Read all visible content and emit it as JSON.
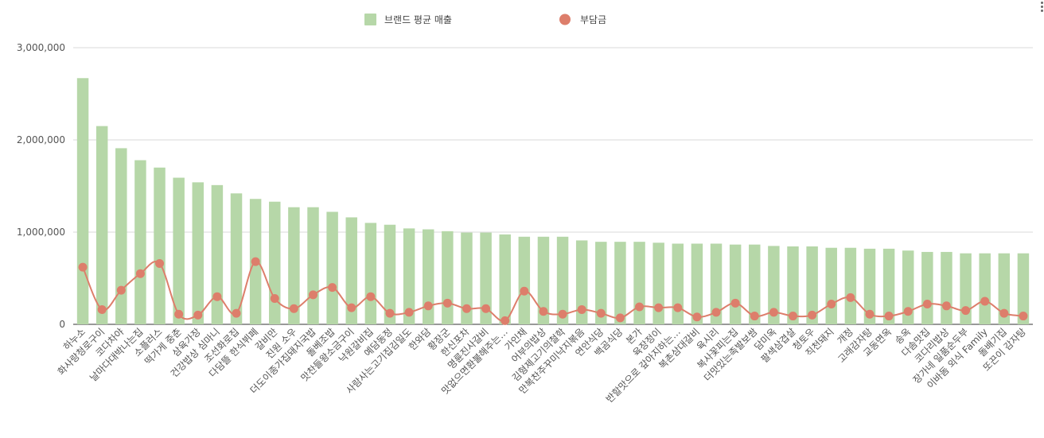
{
  "chart_data": {
    "type": "bar",
    "title": "",
    "xlabel": "",
    "ylabel": "",
    "ylim": [
      0,
      3000000
    ],
    "yticks": [
      "0",
      "1,000,000",
      "2,000,000",
      "3,000,000"
    ],
    "ytick_values": [
      0,
      1000000,
      2000000,
      3000000
    ],
    "grid": true,
    "legend_position": "top-center",
    "categories": [
      "하누소",
      "화사랑청로구이",
      "코다차야",
      "날마다대박나는집",
      "소플러스",
      "떡가게 중춘",
      "삼육가장",
      "건강밥상 심마니",
      "조선화로집",
      "다담뜰 한식뷔페",
      "갈비만",
      "진원 소우",
      "더도이종가집돼지국밥",
      "돌베조밥",
      "맛찬들왕소금구이",
      "낙원갈비집",
      "예담동정",
      "사람사는고기집김일도",
      "한와담",
      "황장군",
      "한신포차",
      "명륜진사갈비",
      "맛없으면환불해주는…",
      "가인채",
      "어부의밥상",
      "김형제고기의철학",
      "만복찬주꾸미낙지볶음",
      "연안식당",
      "백곰식당",
      "본가",
      "육장정이",
      "반할맛으로 갚아지하는…",
      "복촌삼대갈비",
      "육시리",
      "복사꽃피는집",
      "더맛있는족발보쌈",
      "담미옥",
      "팔색삼겹살",
      "청토우",
      "직천돼지",
      "개정",
      "고래감자탕",
      "교동면옥",
      "송옥",
      "다솜맛집",
      "코다리밥상",
      "장가네 일품순두부",
      "이바돔 외식 Family",
      "돌배기집",
      "또끈이 감자탕"
    ],
    "series": [
      {
        "name": "브랜드 평균 매출",
        "kind": "bar",
        "color": "#b6d7a8",
        "values": [
          2670000,
          2150000,
          1910000,
          1780000,
          1700000,
          1590000,
          1540000,
          1510000,
          1420000,
          1360000,
          1330000,
          1270000,
          1270000,
          1220000,
          1160000,
          1100000,
          1080000,
          1040000,
          1030000,
          1010000,
          995000,
          995000,
          975000,
          950000,
          950000,
          950000,
          910000,
          895000,
          895000,
          895000,
          885000,
          875000,
          875000,
          875000,
          865000,
          865000,
          850000,
          845000,
          845000,
          830000,
          830000,
          820000,
          820000,
          800000,
          785000,
          785000,
          770000,
          770000,
          770000,
          770000
        ]
      },
      {
        "name": "부담금",
        "kind": "line",
        "color": "#dd7e6b",
        "values": [
          620000,
          160000,
          370000,
          550000,
          660000,
          110000,
          100000,
          300000,
          120000,
          680000,
          280000,
          170000,
          320000,
          400000,
          180000,
          300000,
          120000,
          130000,
          200000,
          230000,
          170000,
          170000,
          40000,
          360000,
          140000,
          110000,
          160000,
          120000,
          70000,
          190000,
          180000,
          180000,
          80000,
          130000,
          230000,
          90000,
          130000,
          90000,
          100000,
          220000,
          290000,
          110000,
          90000,
          140000,
          220000,
          200000,
          150000,
          250000,
          120000,
          90000
        ]
      }
    ]
  }
}
